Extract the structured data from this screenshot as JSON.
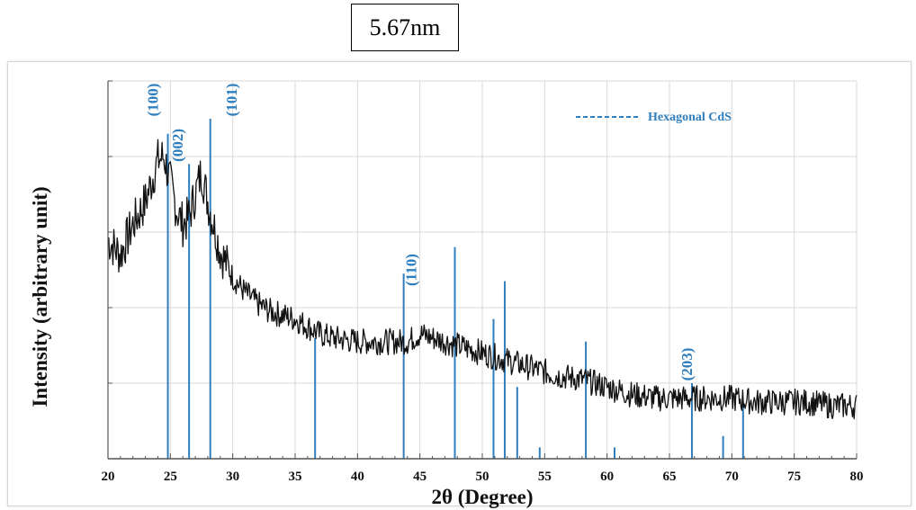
{
  "size_label": "5.67nm",
  "chart_data": {
    "type": "line",
    "title": "",
    "xlabel": "2θ (Degree)",
    "ylabel": "Intensity (arbitrary unit)",
    "xlim": [
      20,
      80
    ],
    "xticks": [
      20,
      25,
      30,
      35,
      40,
      45,
      50,
      55,
      60,
      65,
      70,
      75,
      80
    ],
    "ylim": [
      0,
      100
    ],
    "grid": true,
    "legend": {
      "position": "top-right",
      "entries": [
        "Hexagonal CdS"
      ]
    },
    "colors": {
      "pattern": "#111111",
      "reference": "#2f7fbf",
      "grid": "#d9d9d9"
    },
    "series": [
      {
        "name": "",
        "x": [
          20,
          21,
          22,
          23,
          24,
          24.5,
          25,
          25.5,
          26,
          26.5,
          27,
          27.5,
          28,
          29,
          30,
          31,
          32,
          33,
          35,
          36,
          37,
          38,
          40,
          42,
          44,
          45,
          46,
          47,
          48,
          50,
          52,
          54,
          56,
          58,
          60,
          62,
          64,
          66,
          68,
          70,
          72,
          74,
          76,
          78,
          80
        ],
        "y": [
          58,
          54,
          62,
          68,
          79,
          80,
          73,
          66,
          62,
          64,
          70,
          76,
          68,
          55,
          48,
          44,
          41,
          39,
          37,
          35,
          33,
          32,
          31,
          31,
          31,
          33,
          32,
          31,
          30,
          28,
          26,
          24,
          22,
          21,
          19,
          17,
          16,
          16,
          16,
          16,
          15,
          15,
          15,
          14,
          14
        ]
      }
    ],
    "reference_lines": [
      {
        "x": 24.8,
        "y": 86
      },
      {
        "x": 26.5,
        "y": 78
      },
      {
        "x": 28.2,
        "y": 90
      },
      {
        "x": 36.6,
        "y": 32
      },
      {
        "x": 43.7,
        "y": 49
      },
      {
        "x": 47.8,
        "y": 56
      },
      {
        "x": 50.9,
        "y": 37
      },
      {
        "x": 51.8,
        "y": 47
      },
      {
        "x": 52.8,
        "y": 19
      },
      {
        "x": 54.6,
        "y": 3
      },
      {
        "x": 58.3,
        "y": 31
      },
      {
        "x": 60.6,
        "y": 3
      },
      {
        "x": 66.8,
        "y": 20
      },
      {
        "x": 69.3,
        "y": 6
      },
      {
        "x": 70.9,
        "y": 15
      }
    ],
    "annotations": [
      {
        "text": "(100)",
        "x": 24.0,
        "y": 95
      },
      {
        "text": "(002)",
        "x": 26.0,
        "y": 83
      },
      {
        "text": "(101)",
        "x": 30.3,
        "y": 95
      },
      {
        "text": "(110)",
        "x": 44.7,
        "y": 50
      },
      {
        "text": "(203)",
        "x": 66.8,
        "y": 25
      }
    ]
  }
}
